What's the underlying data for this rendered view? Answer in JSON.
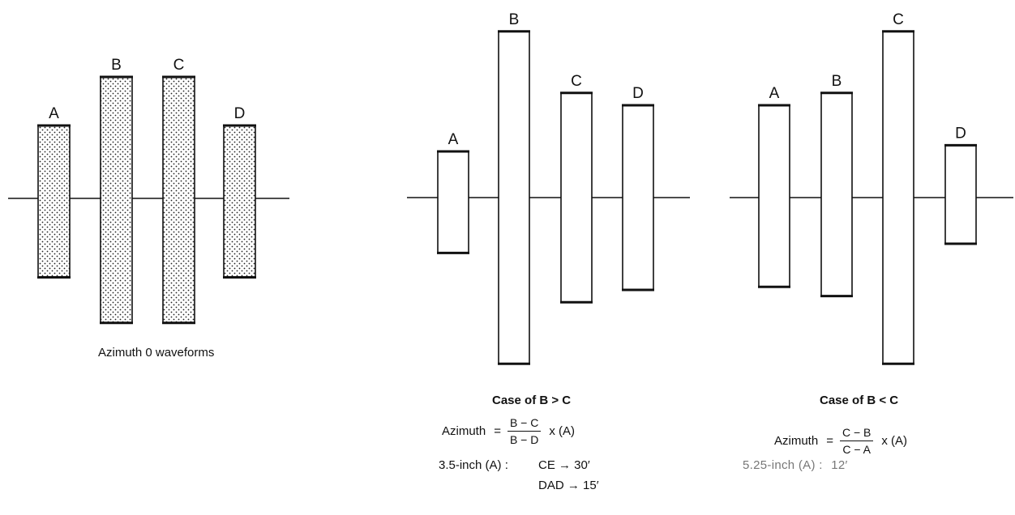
{
  "panels": [
    {
      "id": "zero",
      "bars": [
        {
          "label": "A",
          "top": 1.2,
          "bottom": -1.3
        },
        {
          "label": "B",
          "top": 2.0,
          "bottom": -2.05
        },
        {
          "label": "C",
          "top": 2.0,
          "bottom": -2.05
        },
        {
          "label": "D",
          "top": 1.2,
          "bottom": -1.3
        }
      ],
      "caption": "Azimuth 0 waveforms"
    },
    {
      "id": "b_gt_c",
      "bars": [
        {
          "label": "A",
          "top": 0.75,
          "bottom": -0.9
        },
        {
          "label": "B",
          "top": 2.7,
          "bottom": -2.7
        },
        {
          "label": "C",
          "top": 1.7,
          "bottom": -1.7
        },
        {
          "label": "D",
          "top": 1.5,
          "bottom": -1.5
        }
      ],
      "caption": "Case of B > C",
      "formula": {
        "lhs": "Azimuth",
        "eq": "=",
        "numerator": "B − C",
        "denominator": "B − D",
        "factor": "x (A)"
      },
      "note_lines": [
        {
          "prefix": "3.5-inch (A) :",
          "value": "CE → 30′"
        },
        {
          "prefix": "",
          "value": "DAD → 15′"
        }
      ]
    },
    {
      "id": "b_lt_c",
      "bars": [
        {
          "label": "A",
          "top": 1.5,
          "bottom": -1.45
        },
        {
          "label": "B",
          "top": 1.7,
          "bottom": -1.6
        },
        {
          "label": "C",
          "top": 2.7,
          "bottom": -2.7
        },
        {
          "label": "D",
          "top": 0.85,
          "bottom": -0.75
        }
      ],
      "caption": "Case of B < C",
      "formula": {
        "lhs": "Azimuth",
        "eq": "=",
        "numerator": "C − B",
        "denominator": "C − A",
        "factor": "x (A)"
      },
      "note_lines": [
        {
          "prefix": "5.25-inch (A) :",
          "value": "12′"
        }
      ]
    }
  ]
}
